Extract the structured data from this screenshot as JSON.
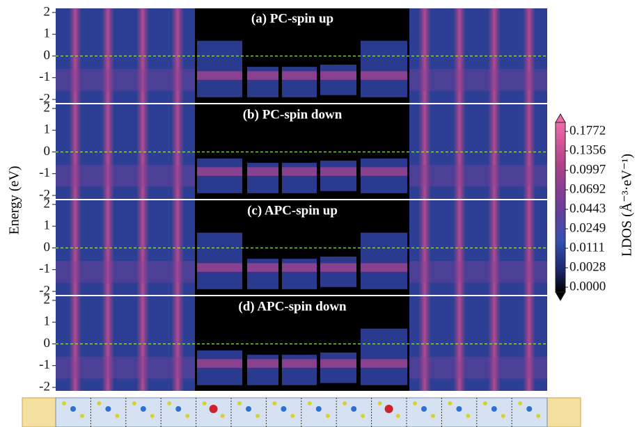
{
  "chart_data": [
    {
      "type": "heatmap",
      "title": "(a) PC-spin up",
      "ylim": [
        -2.16,
        2.19
      ],
      "yticks": [
        -2,
        -1,
        0,
        1,
        2
      ]
    },
    {
      "type": "heatmap",
      "title": "(b) PC-spin down",
      "ylim": [
        -2.16,
        2.19
      ],
      "yticks": [
        -2,
        -1,
        0,
        1,
        2
      ]
    },
    {
      "type": "heatmap",
      "title": "(c) APC-spin up",
      "ylim": [
        -2.16,
        2.19
      ],
      "yticks": [
        -2,
        -1,
        0,
        1,
        2
      ]
    },
    {
      "type": "heatmap",
      "title": "(d) APC-spin down",
      "ylim": [
        -2.16,
        2.19
      ],
      "yticks": [
        -2,
        -1,
        0,
        1,
        2
      ]
    }
  ],
  "y_label": "Energy (eV)",
  "colorbar": {
    "label": "LDOS (Å⁻³·eV⁻¹)",
    "ticks": [
      {
        "value": 0,
        "label": "0.0000"
      },
      {
        "value": 0.0028,
        "label": "0.0028"
      },
      {
        "value": 0.0111,
        "label": "0.0111"
      },
      {
        "value": 0.0249,
        "label": "0.0249"
      },
      {
        "value": 0.0443,
        "label": "0.0443"
      },
      {
        "value": 0.0692,
        "label": "0.0692"
      },
      {
        "value": 0.0997,
        "label": "0.0997"
      },
      {
        "value": 0.1356,
        "label": "0.1356"
      },
      {
        "value": 0.1772,
        "label": "0.1772"
      }
    ]
  }
}
